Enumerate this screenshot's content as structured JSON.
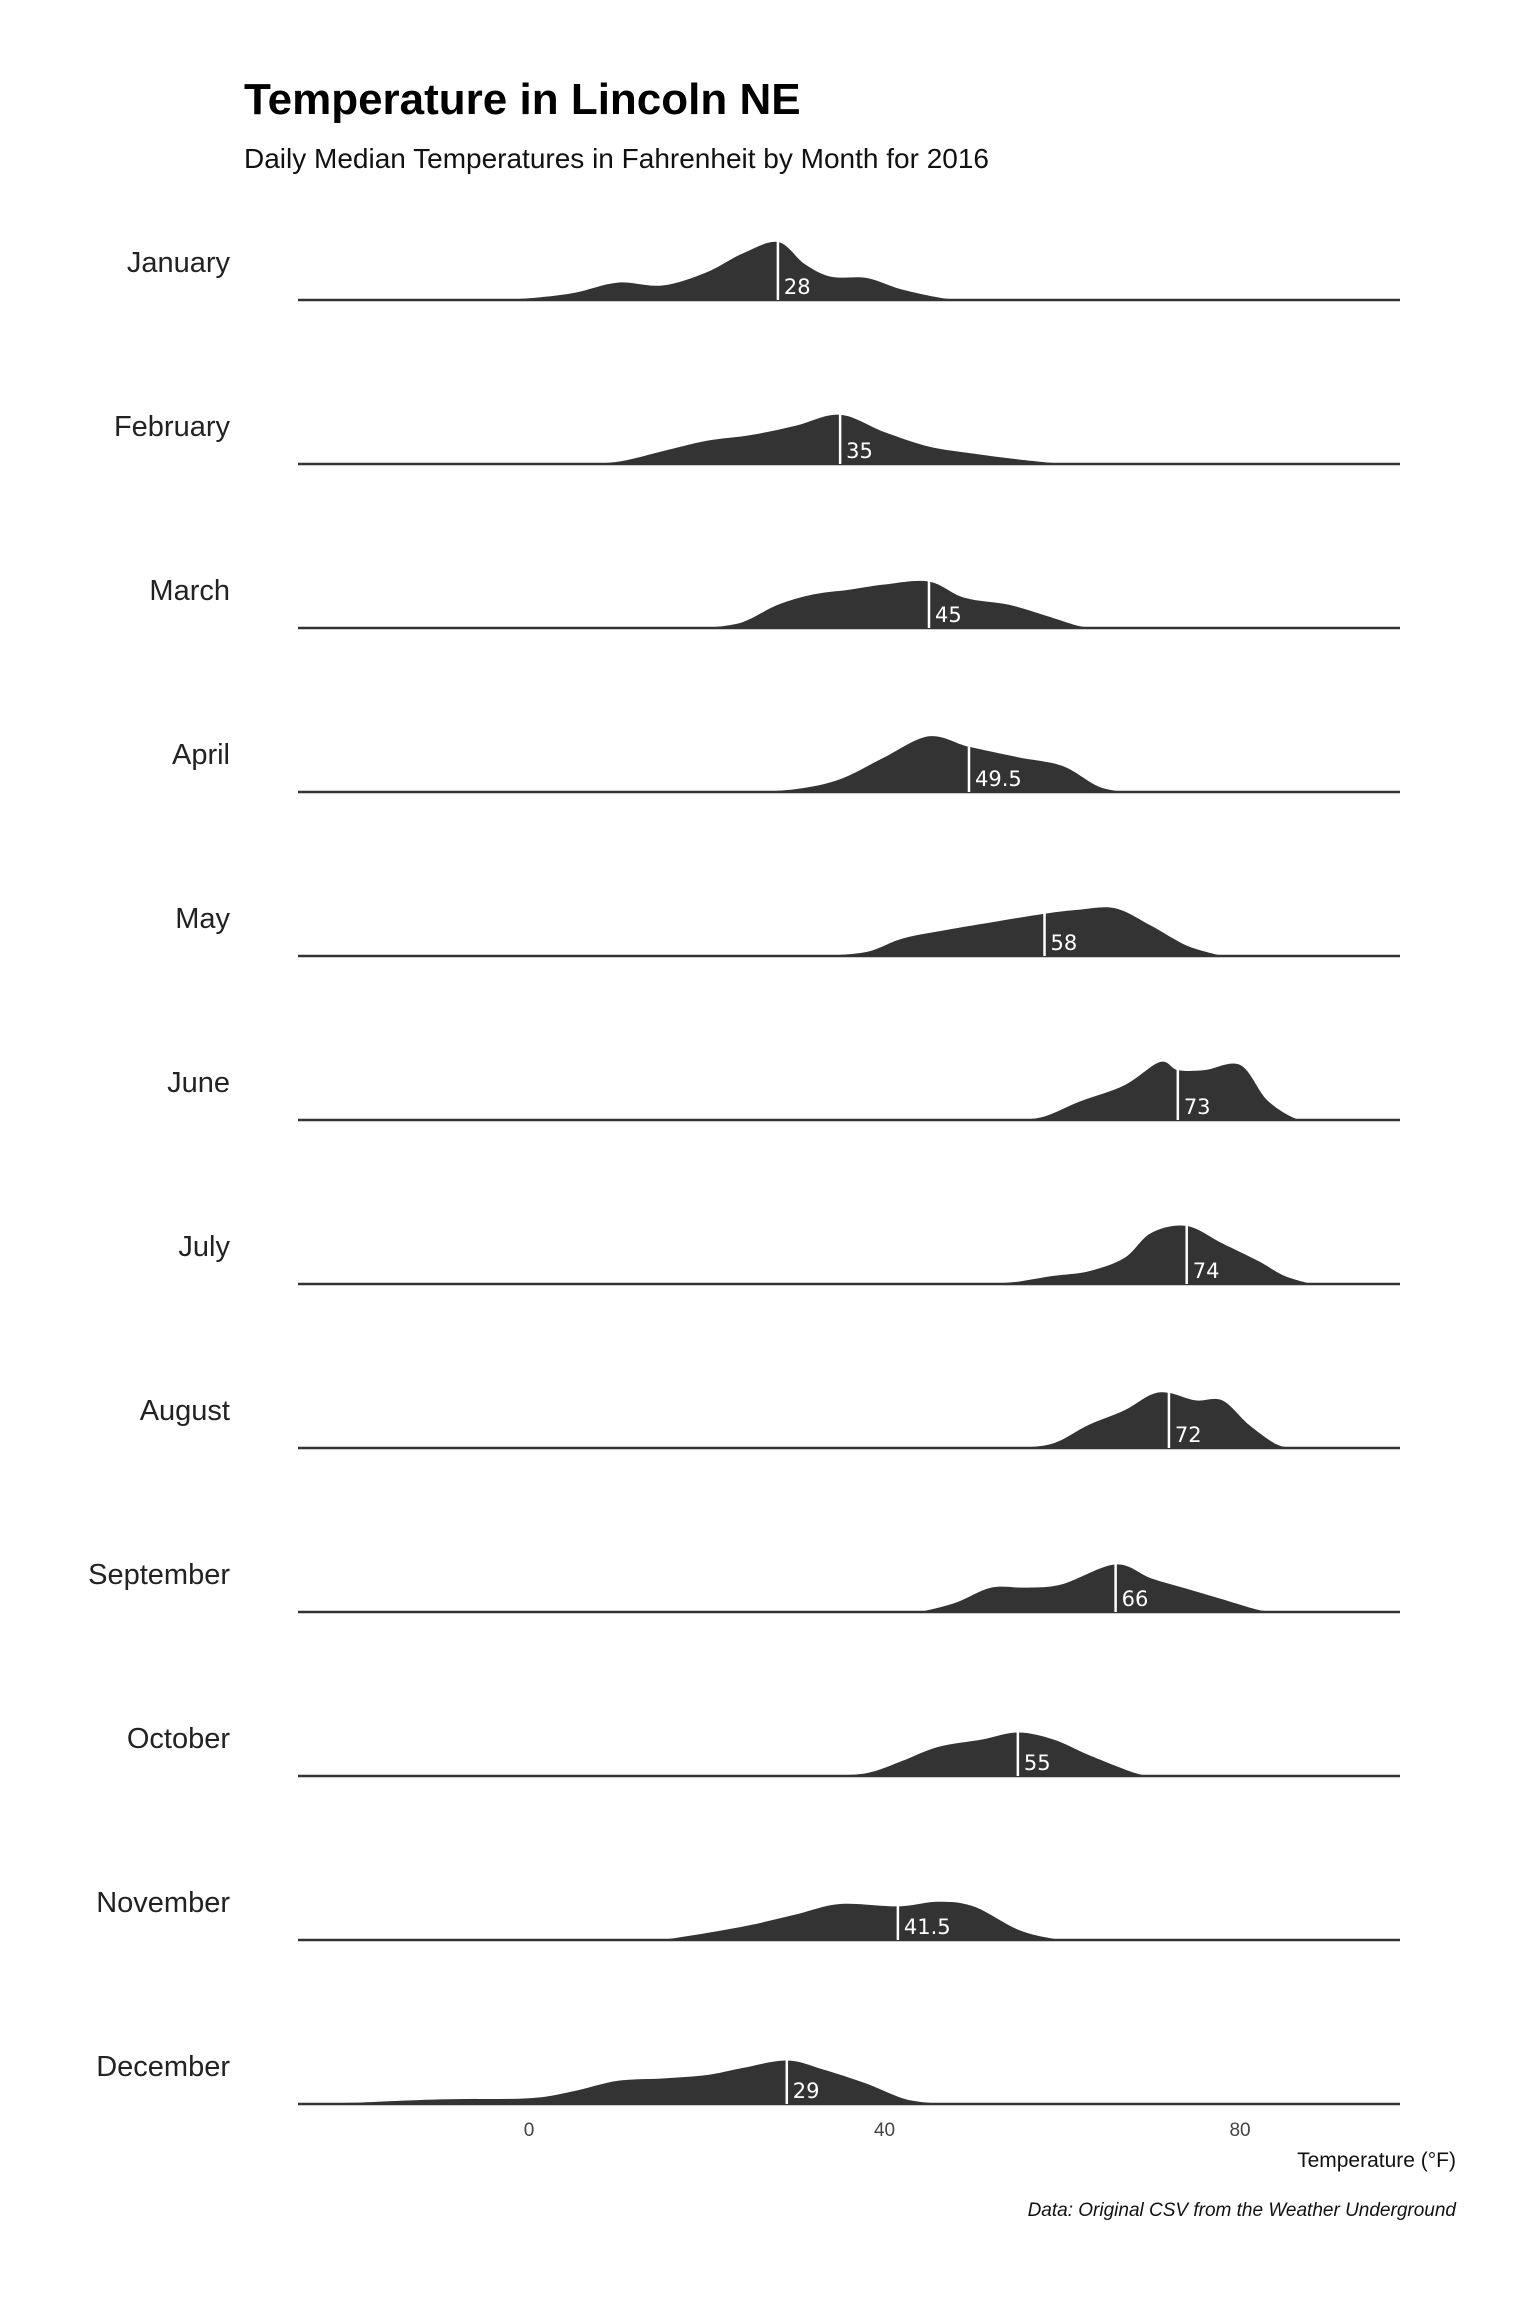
{
  "colors": {
    "fill": "#333333",
    "baseline": "#333333",
    "median_line": "#ffffff",
    "median_text": "#ffffff"
  },
  "chart_data": {
    "type": "ridgeline-density",
    "title": "Temperature in Lincoln NE",
    "subtitle": "Daily Median Temperatures in Fahrenheit by Month for 2016",
    "xlabel": "Temperature (°F)",
    "ylabel": "",
    "caption": "Data: Original CSV from the Weather Underground",
    "xlim": [
      -26,
      98
    ],
    "xticks": [
      0,
      40,
      80
    ],
    "grid": false,
    "legend": "none",
    "series": [
      {
        "name": "January",
        "median": 28,
        "median_label": "28",
        "density": [
          [
            -4,
            0
          ],
          [
            0,
            0.03
          ],
          [
            5,
            0.12
          ],
          [
            10,
            0.3
          ],
          [
            15,
            0.25
          ],
          [
            20,
            0.48
          ],
          [
            24,
            0.8
          ],
          [
            28,
            1.0
          ],
          [
            31,
            0.62
          ],
          [
            34,
            0.4
          ],
          [
            38,
            0.38
          ],
          [
            42,
            0.18
          ],
          [
            47,
            0.02
          ],
          [
            50,
            0
          ]
        ]
      },
      {
        "name": "February",
        "median": 35,
        "median_label": "35",
        "density": [
          [
            5,
            0
          ],
          [
            10,
            0.04
          ],
          [
            15,
            0.22
          ],
          [
            20,
            0.4
          ],
          [
            25,
            0.5
          ],
          [
            30,
            0.66
          ],
          [
            35,
            0.85
          ],
          [
            40,
            0.55
          ],
          [
            45,
            0.3
          ],
          [
            50,
            0.18
          ],
          [
            55,
            0.08
          ],
          [
            60,
            0
          ]
        ]
      },
      {
        "name": "March",
        "median": 45,
        "median_label": "45",
        "density": [
          [
            20,
            0
          ],
          [
            24,
            0.1
          ],
          [
            28,
            0.4
          ],
          [
            32,
            0.58
          ],
          [
            36,
            0.66
          ],
          [
            40,
            0.75
          ],
          [
            45,
            0.8
          ],
          [
            49,
            0.52
          ],
          [
            54,
            0.4
          ],
          [
            58,
            0.22
          ],
          [
            62,
            0.03
          ],
          [
            64,
            0
          ]
        ]
      },
      {
        "name": "April",
        "median": 49.5,
        "median_label": "49.5",
        "density": [
          [
            25,
            0
          ],
          [
            30,
            0.05
          ],
          [
            35,
            0.22
          ],
          [
            40,
            0.6
          ],
          [
            45,
            0.96
          ],
          [
            49.5,
            0.78
          ],
          [
            55,
            0.6
          ],
          [
            60,
            0.45
          ],
          [
            64,
            0.1
          ],
          [
            67,
            0
          ]
        ]
      },
      {
        "name": "May",
        "median": 58,
        "median_label": "58",
        "density": [
          [
            33,
            0
          ],
          [
            38,
            0.07
          ],
          [
            42,
            0.3
          ],
          [
            47,
            0.45
          ],
          [
            52,
            0.58
          ],
          [
            58,
            0.73
          ],
          [
            62,
            0.8
          ],
          [
            66,
            0.82
          ],
          [
            70,
            0.52
          ],
          [
            74,
            0.18
          ],
          [
            78,
            0
          ]
        ]
      },
      {
        "name": "June",
        "median": 73,
        "median_label": "73",
        "density": [
          [
            55,
            0
          ],
          [
            58,
            0.06
          ],
          [
            62,
            0.32
          ],
          [
            67,
            0.6
          ],
          [
            71,
            1.0
          ],
          [
            73,
            0.86
          ],
          [
            76,
            0.86
          ],
          [
            80,
            0.95
          ],
          [
            83,
            0.35
          ],
          [
            86,
            0.04
          ],
          [
            88,
            0
          ]
        ]
      },
      {
        "name": "July",
        "median": 74,
        "median_label": "74",
        "density": [
          [
            52,
            0
          ],
          [
            55,
            0.04
          ],
          [
            59,
            0.14
          ],
          [
            63,
            0.22
          ],
          [
            67,
            0.45
          ],
          [
            70,
            0.88
          ],
          [
            74,
            1.0
          ],
          [
            78,
            0.7
          ],
          [
            82,
            0.4
          ],
          [
            85,
            0.14
          ],
          [
            88,
            0
          ]
        ]
      },
      {
        "name": "August",
        "median": 72,
        "median_label": "72",
        "density": [
          [
            55,
            0
          ],
          [
            59,
            0.08
          ],
          [
            63,
            0.4
          ],
          [
            67,
            0.65
          ],
          [
            70,
            0.92
          ],
          [
            72,
            0.95
          ],
          [
            75,
            0.82
          ],
          [
            78,
            0.82
          ],
          [
            81,
            0.4
          ],
          [
            84,
            0.07
          ],
          [
            86,
            0
          ]
        ]
      },
      {
        "name": "September",
        "median": 66,
        "median_label": "66",
        "density": [
          [
            44,
            0
          ],
          [
            48,
            0.16
          ],
          [
            52,
            0.42
          ],
          [
            56,
            0.42
          ],
          [
            60,
            0.48
          ],
          [
            66,
            0.82
          ],
          [
            70,
            0.58
          ],
          [
            74,
            0.4
          ],
          [
            78,
            0.22
          ],
          [
            82,
            0.04
          ],
          [
            84,
            0
          ]
        ]
      },
      {
        "name": "October",
        "median": 55,
        "median_label": "55",
        "density": [
          [
            33,
            0
          ],
          [
            38,
            0.05
          ],
          [
            42,
            0.26
          ],
          [
            46,
            0.5
          ],
          [
            51,
            0.63
          ],
          [
            55,
            0.75
          ],
          [
            59,
            0.63
          ],
          [
            63,
            0.36
          ],
          [
            68,
            0.06
          ],
          [
            70,
            0
          ]
        ]
      },
      {
        "name": "November",
        "median": 41.5,
        "median_label": "41.5",
        "density": [
          [
            15,
            0
          ],
          [
            20,
            0.12
          ],
          [
            25,
            0.26
          ],
          [
            30,
            0.44
          ],
          [
            35,
            0.62
          ],
          [
            41.5,
            0.58
          ],
          [
            46,
            0.66
          ],
          [
            50,
            0.58
          ],
          [
            55,
            0.18
          ],
          [
            59,
            0.02
          ],
          [
            61,
            0
          ]
        ]
      },
      {
        "name": "December",
        "median": 29,
        "median_label": "29",
        "density": [
          [
            -26,
            0
          ],
          [
            -20,
            0.02
          ],
          [
            -10,
            0.08
          ],
          [
            0,
            0.1
          ],
          [
            5,
            0.22
          ],
          [
            10,
            0.4
          ],
          [
            15,
            0.44
          ],
          [
            20,
            0.5
          ],
          [
            24,
            0.62
          ],
          [
            29,
            0.75
          ],
          [
            33,
            0.6
          ],
          [
            38,
            0.35
          ],
          [
            42,
            0.1
          ],
          [
            45,
            0.02
          ],
          [
            47,
            0
          ]
        ]
      }
    ]
  }
}
